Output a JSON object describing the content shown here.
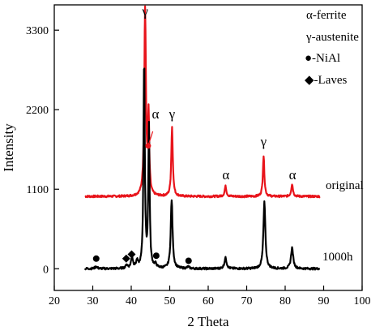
{
  "chart_data": {
    "type": "line",
    "xlabel": "2 Theta",
    "ylabel": "Intensity",
    "xlim": [
      20,
      100
    ],
    "ylim": [
      -300,
      3650
    ],
    "x_ticks": [
      20,
      30,
      40,
      50,
      60,
      70,
      80,
      90,
      100
    ],
    "y_ticks": [
      0,
      1100,
      2200,
      3300
    ],
    "grid": false,
    "series": [
      {
        "name": "original",
        "color": "#e8141b",
        "offset": 1000,
        "baseline_at_28": 1000,
        "baseline_at_89": 1000,
        "peaks": [
          {
            "x": 43.6,
            "intensity": 2580,
            "width": 0.38
          },
          {
            "x": 44.5,
            "intensity": 1080,
            "width": 0.3
          },
          {
            "x": 50.6,
            "intensity": 960,
            "width": 0.35
          },
          {
            "x": 64.5,
            "intensity": 140,
            "width": 0.4
          },
          {
            "x": 74.4,
            "intensity": 560,
            "width": 0.35
          },
          {
            "x": 81.8,
            "intensity": 170,
            "width": 0.4
          }
        ]
      },
      {
        "name": "1000h",
        "color": "#000000",
        "offset": 0,
        "baseline_at_28": 0,
        "baseline_at_89": 0,
        "peaks": [
          {
            "x": 30.9,
            "intensity": 30,
            "width": 0.5
          },
          {
            "x": 38.8,
            "intensity": 50,
            "width": 0.4
          },
          {
            "x": 40.2,
            "intensity": 150,
            "width": 0.45
          },
          {
            "x": 41.5,
            "intensity": 90,
            "width": 0.4
          },
          {
            "x": 43.35,
            "intensity": 2880,
            "width": 0.3
          },
          {
            "x": 44.6,
            "intensity": 1950,
            "width": 0.3
          },
          {
            "x": 46.3,
            "intensity": 45,
            "width": 0.5
          },
          {
            "x": 50.5,
            "intensity": 950,
            "width": 0.42
          },
          {
            "x": 54.8,
            "intensity": 25,
            "width": 0.5
          },
          {
            "x": 64.5,
            "intensity": 150,
            "width": 0.5
          },
          {
            "x": 74.6,
            "intensity": 920,
            "width": 0.45
          },
          {
            "x": 81.8,
            "intensity": 290,
            "width": 0.5
          }
        ]
      }
    ],
    "peak_labels": [
      {
        "symbol": "γ",
        "x": 43.6,
        "y": 3500
      },
      {
        "symbol": "α",
        "x": 46.3,
        "y": 2080
      },
      {
        "symbol": "γ",
        "x": 50.6,
        "y": 2080
      },
      {
        "symbol": "α",
        "x": 64.6,
        "y": 1240
      },
      {
        "symbol": "γ",
        "x": 74.4,
        "y": 1700
      },
      {
        "symbol": "α",
        "x": 81.9,
        "y": 1240
      }
    ],
    "markers": [
      {
        "shape": "circle",
        "x": 30.9,
        "y": 140
      },
      {
        "shape": "diamond",
        "x": 38.7,
        "y": 140
      },
      {
        "shape": "diamond",
        "x": 40.1,
        "y": 200
      },
      {
        "shape": "circle",
        "x": 46.5,
        "y": 180
      },
      {
        "shape": "circle",
        "x": 54.9,
        "y": 110
      }
    ],
    "alpha_pointer": {
      "from_x": 45.6,
      "from_y": 1900,
      "to_x": 44.4,
      "to_y": 1700
    },
    "legend": {
      "position": "top-right",
      "items": [
        "α-ferrite",
        "γ-austenite",
        "●-NiAl",
        "◆-Laves"
      ]
    },
    "series_label_positions": [
      {
        "text": "original",
        "x": 89.8,
        "y": 1000
      },
      {
        "text": "1000h",
        "x": 89.8,
        "y": 0
      }
    ]
  }
}
